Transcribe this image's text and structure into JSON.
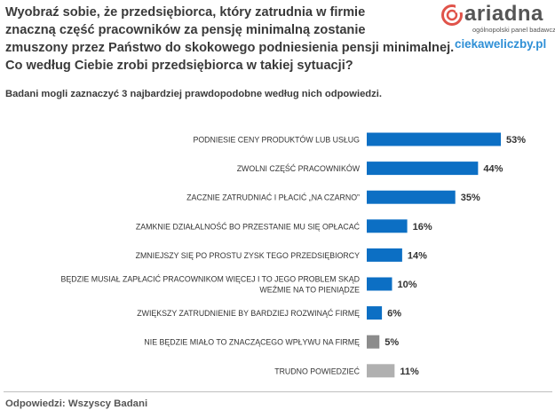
{
  "header": {
    "question": "Wyobraź sobie, że przedsiębiorca, który zatrudnia w firmie\nznaczną część pracowników za pensję minimalną zostanie\nzmuszony przez Państwo do skokowego podniesienia pensji minimalnej.\nCo według Ciebie zrobi przedsiębiorca w takiej sytuacji?",
    "note": "Badani mogli zaznaczyć 3 najbardziej prawdopodobne według nich odpowiedzi."
  },
  "brand": {
    "name": "ariadna",
    "tagline": "ogólnopolski panel badawczy",
    "site": "ciekaweliczby.pl",
    "logo_color": "#e0534a"
  },
  "footer": {
    "base": "Odpowiedzi: Wszyscy Badani"
  },
  "colors": {
    "primary_bar": "#0c6fc4",
    "secondary_bar": "#8c8c8c",
    "tertiary_bar": "#b0b0b0"
  },
  "chart_data": {
    "type": "bar",
    "orientation": "horizontal",
    "title": "",
    "xlabel": "",
    "ylabel": "",
    "xlim": [
      0,
      60
    ],
    "grid": false,
    "legend": "none",
    "value_suffix": "%",
    "categories": [
      [
        "PODNIESIE CENY PRODUKTÓW LUB USŁUG"
      ],
      [
        "ZWOLNI CZĘŚĆ PRACOWNIKÓW"
      ],
      [
        "ZACZNIE ZATRUDNIAĆ I PŁACIĆ „NA CZARNO”"
      ],
      [
        "ZAMKNIE DZIAŁALNOŚĆ BO PRZESTANIE MU SIĘ OPŁACAĆ"
      ],
      [
        "ZMNIEJSZY SIĘ PO PROSTU ZYSK TEGO PRZEDSIĘBIORCY"
      ],
      [
        "BĘDZIE MUSIAŁ ZAPŁACIĆ PRACOWNIKOM WIĘCEJ I TO JEGO PROBLEM SKĄD",
        "WEŹMIE NA TO PIENIĄDZE"
      ],
      [
        "ZWIĘKSZY ZATRUDNIENIE BY BARDZIEJ ROZWINĄĆ FIRMĘ"
      ],
      [
        "NIE BĘDZIE MIAŁO TO ZNACZĄCEGO WPŁYWU NA FIRMĘ"
      ],
      [
        "TRUDNO POWIEDZIEĆ"
      ]
    ],
    "values": [
      53,
      44,
      35,
      16,
      14,
      10,
      6,
      5,
      11
    ],
    "bar_colors": [
      "#0c6fc4",
      "#0c6fc4",
      "#0c6fc4",
      "#0c6fc4",
      "#0c6fc4",
      "#0c6fc4",
      "#0c6fc4",
      "#8c8c8c",
      "#b0b0b0"
    ]
  }
}
